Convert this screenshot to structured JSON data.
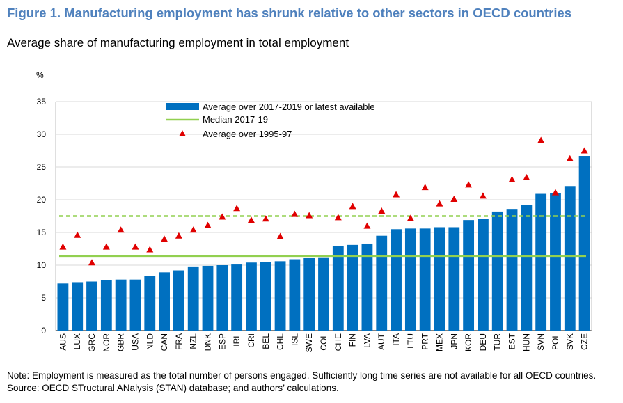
{
  "figure": {
    "title": "Figure 1. Manufacturing employment has shrunk relative to other sectors in OECD countries",
    "subtitle": "Average share of manufacturing employment in total employment",
    "note": "Note: Employment is measured as the total number of persons engaged. Sufficiently long time series are not available for all OECD countries.",
    "source": "Source: OECD STructural ANalysis (STAN) database; and authors’ calculations."
  },
  "colors": {
    "title": "#4f81bd",
    "bars": "#0070c0",
    "median_line": "#92d050",
    "markers": "#e00000",
    "grid": "#d9d9d9"
  },
  "chart_data": {
    "type": "bar",
    "ylabel": "%",
    "ylim": [
      0,
      35
    ],
    "yticks": [
      0,
      5,
      10,
      15,
      20,
      25,
      30,
      35
    ],
    "grid": true,
    "legend_position": "top-center",
    "categories": [
      "AUS",
      "LUX",
      "GRC",
      "NOR",
      "GBR",
      "USA",
      "NLD",
      "CAN",
      "FRA",
      "NZL",
      "DNK",
      "ESP",
      "IRL",
      "CRI",
      "BEL",
      "CHL",
      "ISL",
      "SWE",
      "COL",
      "CHE",
      "FIN",
      "LVA",
      "AUT",
      "ITA",
      "LTU",
      "PRT",
      "MEX",
      "JPN",
      "KOR",
      "DEU",
      "TUR",
      "EST",
      "HUN",
      "SVN",
      "POL",
      "SVK",
      "CZE"
    ],
    "series": [
      {
        "name": "Average over 2017-2019 or latest available",
        "kind": "bar",
        "values": [
          7.2,
          7.4,
          7.5,
          7.7,
          7.8,
          7.8,
          8.3,
          8.9,
          9.2,
          9.8,
          9.9,
          10.0,
          10.1,
          10.4,
          10.5,
          10.6,
          10.9,
          11.1,
          11.2,
          12.9,
          13.1,
          13.3,
          14.5,
          15.5,
          15.6,
          15.6,
          15.8,
          15.8,
          16.9,
          17.1,
          18.2,
          18.6,
          19.2,
          20.9,
          21.0,
          22.1,
          26.7
        ]
      },
      {
        "name": "Median 2017-19",
        "kind": "line",
        "segments": [
          {
            "value": 11.4,
            "style": "solid"
          },
          {
            "value": 17.5,
            "style": "dashed"
          }
        ]
      },
      {
        "name": "Average over 1995-97",
        "kind": "marker",
        "values": [
          12.8,
          14.6,
          10.4,
          12.8,
          15.4,
          12.8,
          12.4,
          14.0,
          14.5,
          15.4,
          16.1,
          17.4,
          18.7,
          16.9,
          17.1,
          14.4,
          17.8,
          17.6,
          null,
          17.3,
          19.0,
          16.0,
          18.3,
          20.8,
          17.2,
          21.9,
          19.4,
          20.1,
          22.3,
          20.6,
          null,
          23.1,
          23.4,
          29.1,
          21.1,
          26.3,
          27.5
        ]
      }
    ]
  }
}
